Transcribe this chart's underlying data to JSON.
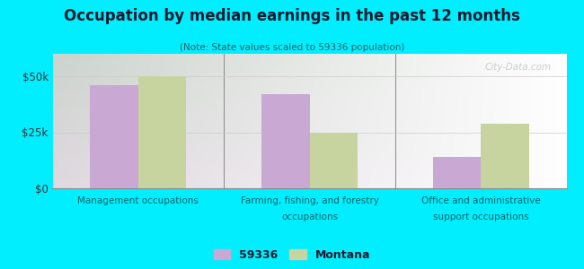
{
  "title": "Occupation by median earnings in the past 12 months",
  "subtitle": "(Note: State values scaled to 59336 population)",
  "categories": [
    "Management occupations",
    "Farming, fishing, and forestry\noccupations",
    "Office and administrative\nsupport occupations"
  ],
  "series": {
    "59336": [
      46000,
      42000,
      14000
    ],
    "Montana": [
      50000,
      25000,
      29000
    ]
  },
  "bar_colors": {
    "59336": "#c9a8d4",
    "Montana": "#c8d4a0"
  },
  "legend_labels": [
    "59336",
    "Montana"
  ],
  "ylim": [
    0,
    60000
  ],
  "yticks": [
    0,
    25000,
    50000
  ],
  "ytick_labels": [
    "$0",
    "$25k",
    "$50k"
  ],
  "background_outer": "#00eeff",
  "bar_width": 0.28,
  "watermark": "City-Data.com",
  "title_color": "#1a1a2e",
  "subtitle_color": "#2a6060"
}
